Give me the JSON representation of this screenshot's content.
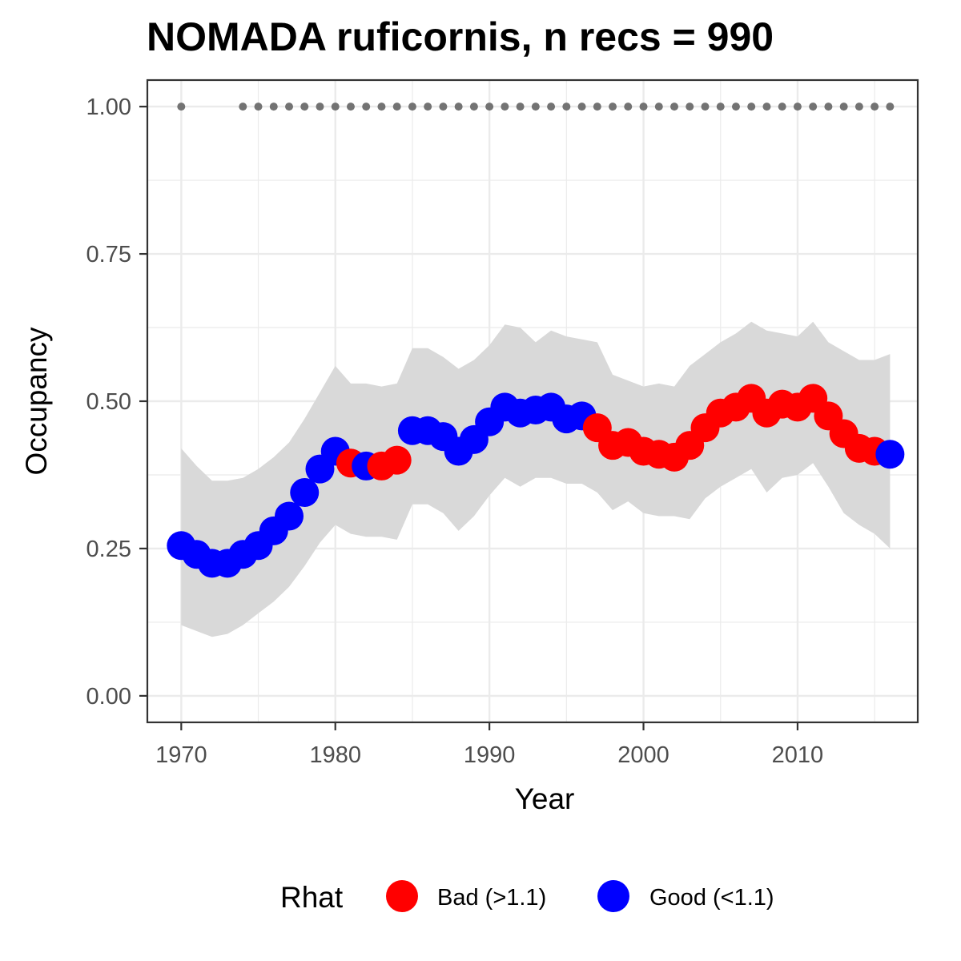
{
  "chart_data": {
    "type": "line",
    "title": "NOMADA ruficornis, n recs = 990",
    "xlabel": "Year",
    "ylabel": "Occupancy",
    "xlim": [
      1967.8,
      2017.8
    ],
    "ylim": [
      -0.045,
      1.045
    ],
    "x_ticks": [
      1970,
      1980,
      1990,
      2000,
      2010
    ],
    "y_ticks": [
      0.0,
      0.25,
      0.5,
      0.75,
      1.0
    ],
    "y_tick_labels": [
      "0.00",
      "0.25",
      "0.50",
      "0.75",
      "1.00"
    ],
    "grid": true,
    "legend": {
      "title": "Rhat",
      "position": "bottom",
      "entries": [
        {
          "key": "bad",
          "label": "Bad (>1.1)",
          "color": "#ff0000"
        },
        {
          "key": "good",
          "label": "Good (<1.1)",
          "color": "#0000ff"
        }
      ]
    },
    "colors": {
      "bad": "#ff0000",
      "good": "#0000ff",
      "ribbon": "#d9d9d9",
      "records": "#737373"
    },
    "years": [
      1970,
      1971,
      1972,
      1973,
      1974,
      1975,
      1976,
      1977,
      1978,
      1979,
      1980,
      1981,
      1982,
      1983,
      1984,
      1985,
      1986,
      1987,
      1988,
      1989,
      1990,
      1991,
      1992,
      1993,
      1994,
      1995,
      1996,
      1997,
      1998,
      1999,
      2000,
      2001,
      2002,
      2003,
      2004,
      2005,
      2006,
      2007,
      2008,
      2009,
      2010,
      2011,
      2012,
      2013,
      2014,
      2015,
      2016
    ],
    "occupancy": [
      0.255,
      0.24,
      0.225,
      0.225,
      0.24,
      0.255,
      0.28,
      0.305,
      0.345,
      0.385,
      0.415,
      0.395,
      0.39,
      0.39,
      0.4,
      0.45,
      0.45,
      0.44,
      0.415,
      0.435,
      0.465,
      0.49,
      0.48,
      0.485,
      0.49,
      0.47,
      0.475,
      0.455,
      0.425,
      0.43,
      0.415,
      0.41,
      0.405,
      0.425,
      0.455,
      0.48,
      0.49,
      0.505,
      0.48,
      0.495,
      0.49,
      0.505,
      0.475,
      0.445,
      0.42,
      0.415,
      0.41
    ],
    "lower_ci": [
      0.12,
      0.11,
      0.1,
      0.105,
      0.12,
      0.14,
      0.16,
      0.185,
      0.22,
      0.26,
      0.29,
      0.275,
      0.27,
      0.27,
      0.265,
      0.325,
      0.325,
      0.31,
      0.28,
      0.305,
      0.34,
      0.37,
      0.355,
      0.37,
      0.37,
      0.36,
      0.36,
      0.345,
      0.315,
      0.33,
      0.31,
      0.305,
      0.305,
      0.3,
      0.335,
      0.355,
      0.37,
      0.385,
      0.345,
      0.37,
      0.375,
      0.395,
      0.355,
      0.31,
      0.29,
      0.275,
      0.25
    ],
    "upper_ci": [
      0.42,
      0.39,
      0.365,
      0.365,
      0.37,
      0.385,
      0.405,
      0.43,
      0.47,
      0.515,
      0.56,
      0.53,
      0.53,
      0.525,
      0.53,
      0.59,
      0.59,
      0.575,
      0.555,
      0.57,
      0.595,
      0.63,
      0.625,
      0.6,
      0.62,
      0.61,
      0.605,
      0.6,
      0.545,
      0.535,
      0.525,
      0.53,
      0.525,
      0.56,
      0.58,
      0.6,
      0.615,
      0.635,
      0.62,
      0.615,
      0.61,
      0.635,
      0.6,
      0.585,
      0.57,
      0.57,
      0.58
    ],
    "rhat": [
      "good",
      "good",
      "good",
      "good",
      "good",
      "good",
      "good",
      "good",
      "good",
      "good",
      "good",
      "bad",
      "good",
      "bad",
      "bad",
      "good",
      "good",
      "good",
      "good",
      "good",
      "good",
      "good",
      "good",
      "good",
      "good",
      "good",
      "good",
      "bad",
      "bad",
      "bad",
      "bad",
      "bad",
      "bad",
      "bad",
      "bad",
      "bad",
      "bad",
      "bad",
      "bad",
      "bad",
      "bad",
      "bad",
      "bad",
      "bad",
      "bad",
      "bad",
      "good"
    ],
    "record_years": [
      1970,
      1974,
      1975,
      1976,
      1977,
      1978,
      1979,
      1980,
      1981,
      1982,
      1983,
      1984,
      1985,
      1986,
      1987,
      1988,
      1989,
      1990,
      1991,
      1992,
      1993,
      1994,
      1995,
      1996,
      1997,
      1998,
      1999,
      2000,
      2001,
      2002,
      2003,
      2004,
      2005,
      2006,
      2007,
      2008,
      2009,
      2010,
      2011,
      2012,
      2013,
      2014,
      2015,
      2016
    ],
    "record_value": 1.0
  }
}
